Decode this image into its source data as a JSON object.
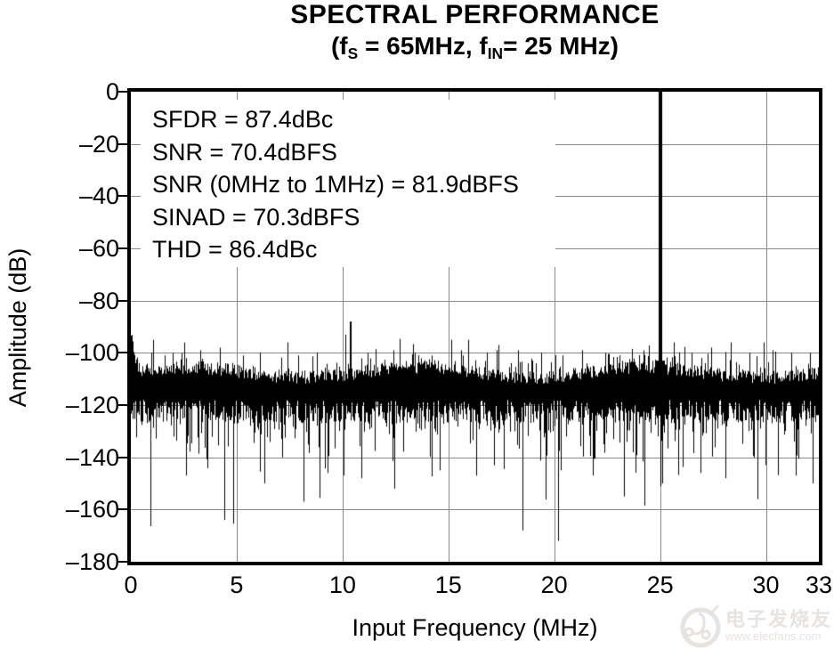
{
  "title": "SPECTRAL PERFORMANCE",
  "subtitle_segments": [
    {
      "text": "(f"
    },
    {
      "text": "S",
      "sub": true
    },
    {
      "text": " = 65MHz, f"
    },
    {
      "text": "IN",
      "sub": true
    },
    {
      "text": "= 25 MHz)"
    }
  ],
  "watermark": {
    "brand": "电子发烧友",
    "url": "www.elecfans.com",
    "color": "#e7e3e0"
  },
  "colors": {
    "trace": "#000000",
    "grid": "#8a8a8a",
    "background": "#ffffff",
    "text": "#000000"
  },
  "chart_data": {
    "type": "line",
    "style": "fft-spectrum",
    "title": "SPECTRAL PERFORMANCE",
    "subtitle": "(fS = 65MHz, fIN= 25 MHz)",
    "xlabel": "Input Frequency (MHz)",
    "ylabel": "Amplitude (dB)",
    "xlim": [
      0,
      32.5
    ],
    "ylim": [
      -180,
      0
    ],
    "grid": true,
    "legend": false,
    "x_ticks": [
      {
        "v": 0,
        "label": "0"
      },
      {
        "v": 5,
        "label": "5"
      },
      {
        "v": 10,
        "label": "10"
      },
      {
        "v": 15,
        "label": "15"
      },
      {
        "v": 20,
        "label": "20"
      },
      {
        "v": 25,
        "label": "25"
      },
      {
        "v": 30,
        "label": "30"
      },
      {
        "v": 32.5,
        "label": "33"
      }
    ],
    "y_ticks": [
      {
        "v": 0,
        "label": "0"
      },
      {
        "v": -20,
        "label": "–20"
      },
      {
        "v": -40,
        "label": "–40"
      },
      {
        "v": -60,
        "label": "–60"
      },
      {
        "v": -80,
        "label": "–80"
      },
      {
        "v": -100,
        "label": "–100"
      },
      {
        "v": -120,
        "label": "–120"
      },
      {
        "v": -140,
        "label": "–140"
      },
      {
        "v": -160,
        "label": "–160"
      },
      {
        "v": -180,
        "label": "–180"
      }
    ],
    "annotations": [
      "SFDR = 87.4dBc",
      "SNR = 70.4dBFS",
      "SNR (0MHz to 1MHz) = 81.9dBFS",
      "SINAD = 70.3dBFS",
      "THD = 86.4dBc"
    ],
    "main_tone": {
      "freq_mhz": 25,
      "level_db": 0
    },
    "spurs": [
      [
        1.05,
        -95
      ],
      [
        1.6,
        -101
      ],
      [
        2.4,
        -100
      ],
      [
        3.3,
        -99
      ],
      [
        4.2,
        -98
      ],
      [
        5.3,
        -101
      ],
      [
        6.1,
        -100
      ],
      [
        7.4,
        -96
      ],
      [
        7.9,
        -101
      ],
      [
        8.8,
        -100
      ],
      [
        10.15,
        -93
      ],
      [
        10.35,
        -88
      ],
      [
        11.2,
        -100
      ],
      [
        12.4,
        -99
      ],
      [
        13.4,
        -100
      ],
      [
        14.2,
        -101
      ],
      [
        15.15,
        -95
      ],
      [
        15.6,
        -99
      ],
      [
        15.95,
        -95
      ],
      [
        16.8,
        -100
      ],
      [
        17.35,
        -97
      ],
      [
        18.3,
        -99
      ],
      [
        19.4,
        -100
      ],
      [
        20.4,
        -101
      ],
      [
        21.3,
        -99
      ],
      [
        22.4,
        -100
      ],
      [
        23.1,
        -101
      ],
      [
        24.2,
        -99
      ],
      [
        25.65,
        -96
      ],
      [
        26.5,
        -100
      ],
      [
        27.4,
        -98
      ],
      [
        28.35,
        -96
      ],
      [
        29.2,
        -100
      ],
      [
        29.9,
        -96
      ],
      [
        30.3,
        -99
      ],
      [
        31.2,
        -100
      ],
      [
        32.1,
        -100
      ]
    ],
    "noise_floor": {
      "top_db_mean": -107,
      "band_bottom_db_mean": -121,
      "dc_rise_db": -99,
      "deep_nulls": [
        [
          2.6,
          -147
        ],
        [
          4.4,
          -164
        ],
        [
          6.3,
          -150
        ],
        [
          8.15,
          -157
        ],
        [
          9.3,
          -146
        ],
        [
          10.9,
          -148
        ],
        [
          12.45,
          -152
        ],
        [
          14.6,
          -145
        ],
        [
          16.3,
          -147
        ],
        [
          18.5,
          -168
        ],
        [
          20.3,
          -145
        ],
        [
          21.8,
          -147
        ],
        [
          23.3,
          -155
        ],
        [
          25.1,
          -150
        ],
        [
          26.9,
          -146
        ],
        [
          28.1,
          -148
        ],
        [
          29.6,
          -156
        ],
        [
          31.4,
          -147
        ],
        [
          32.2,
          -150
        ]
      ],
      "seed": 11
    }
  }
}
